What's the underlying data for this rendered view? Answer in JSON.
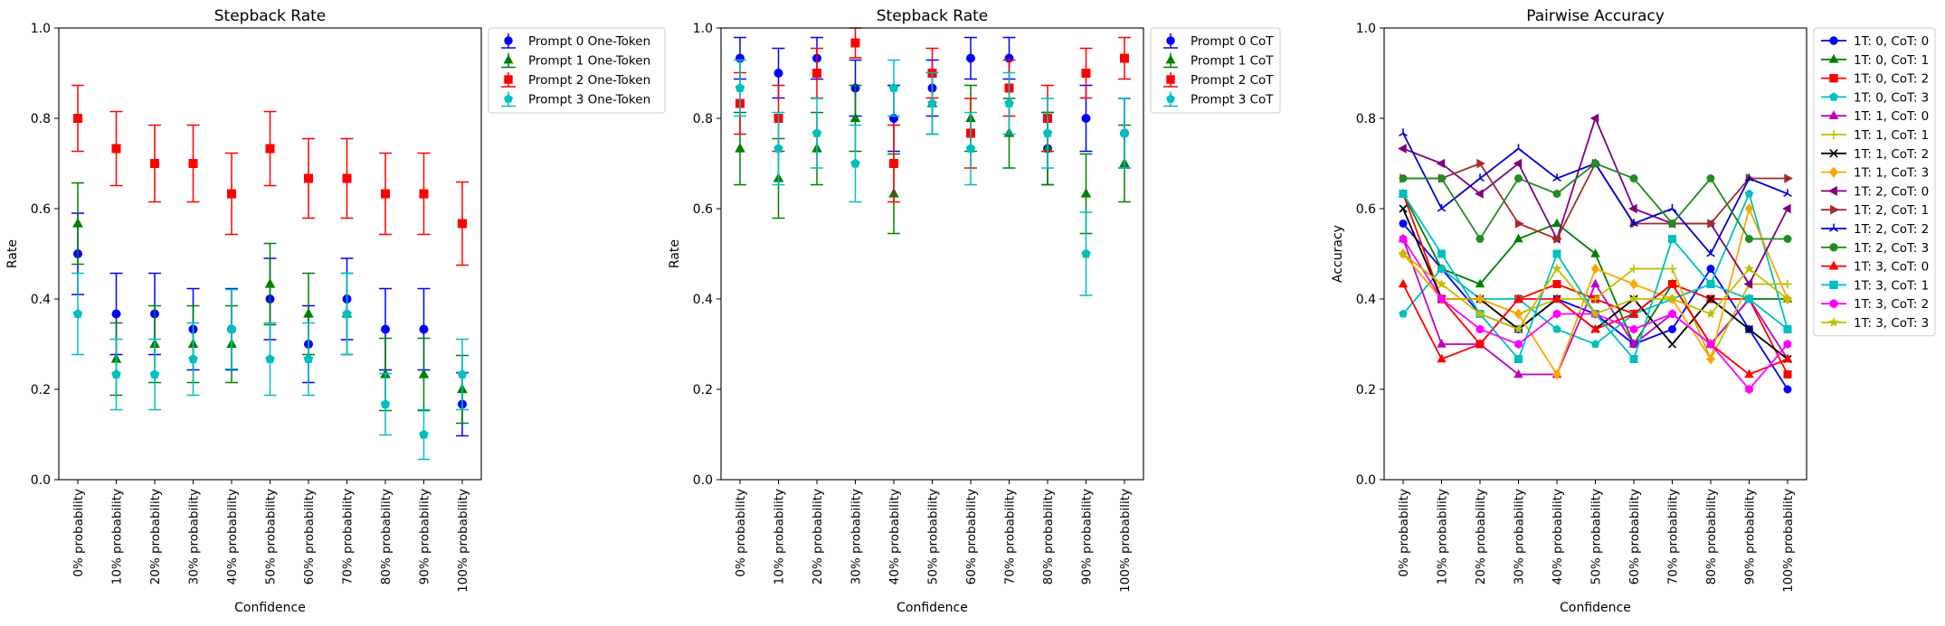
{
  "chart_data": [
    {
      "type": "errorbar",
      "title": "Stepback Rate",
      "xlabel": "Confidence",
      "ylabel": "Rate",
      "ylim": [
        0,
        1.0
      ],
      "yticks": [
        "0.0",
        "0.2",
        "0.4",
        "0.6",
        "0.8",
        "1.0"
      ],
      "categories": [
        "0% probability",
        "10% probability",
        "20% probability",
        "30% probability",
        "40% probability",
        "50% probability",
        "60% probability",
        "70% probability",
        "80% probability",
        "90% probability",
        "100% probability"
      ],
      "legend_position": "outside-right",
      "series": [
        {
          "name": "Prompt 0 One-Token",
          "color": "#0000ff",
          "marker": "circle",
          "values": [
            0.5,
            0.367,
            0.367,
            0.333,
            0.333,
            0.4,
            0.3,
            0.4,
            0.333,
            0.333,
            0.167
          ],
          "err": [
            0.09,
            0.09,
            0.09,
            0.09,
            0.09,
            0.09,
            0.085,
            0.09,
            0.09,
            0.09,
            0.07
          ]
        },
        {
          "name": "Prompt 1 One-Token",
          "color": "#008000",
          "marker": "triangle",
          "values": [
            0.567,
            0.267,
            0.3,
            0.3,
            0.3,
            0.433,
            0.367,
            0.367,
            0.233,
            0.233,
            0.2
          ],
          "err": [
            0.09,
            0.08,
            0.085,
            0.085,
            0.085,
            0.09,
            0.09,
            0.09,
            0.08,
            0.08,
            0.075
          ]
        },
        {
          "name": "Prompt 2 One-Token",
          "color": "#ff0000",
          "marker": "square",
          "values": [
            0.8,
            0.733,
            0.7,
            0.7,
            0.633,
            0.733,
            0.667,
            0.667,
            0.633,
            0.633,
            0.567
          ],
          "err": [
            0.073,
            0.082,
            0.085,
            0.085,
            0.09,
            0.082,
            0.088,
            0.088,
            0.09,
            0.09,
            0.092
          ]
        },
        {
          "name": "Prompt 3 One-Token",
          "color": "#00bfbf",
          "marker": "pentagon",
          "values": [
            0.367,
            0.233,
            0.233,
            0.267,
            0.333,
            0.267,
            0.267,
            0.367,
            0.167,
            0.1,
            0.233
          ],
          "err": [
            0.09,
            0.078,
            0.078,
            0.08,
            0.088,
            0.08,
            0.08,
            0.09,
            0.068,
            0.055,
            0.078
          ]
        }
      ]
    },
    {
      "type": "errorbar",
      "title": "Stepback Rate",
      "xlabel": "Confidence",
      "ylabel": "Rate",
      "ylim": [
        0,
        1.0
      ],
      "yticks": [
        "0.0",
        "0.2",
        "0.4",
        "0.6",
        "0.8",
        "1.0"
      ],
      "categories": [
        "0% probability",
        "10% probability",
        "20% probability",
        "30% probability",
        "40% probability",
        "50% probability",
        "60% probability",
        "70% probability",
        "80% probability",
        "90% probability",
        "100% probability"
      ],
      "legend_position": "outside-right",
      "series": [
        {
          "name": "Prompt 0 CoT",
          "color": "#0000ff",
          "marker": "circle",
          "values": [
            0.933,
            0.9,
            0.933,
            0.867,
            0.8,
            0.867,
            0.933,
            0.933,
            0.733,
            0.8,
            0.767
          ],
          "err": [
            0.046,
            0.055,
            0.046,
            0.062,
            0.073,
            0.062,
            0.046,
            0.046,
            0.08,
            0.073,
            0.077
          ]
        },
        {
          "name": "Prompt 1 CoT",
          "color": "#008000",
          "marker": "triangle",
          "values": [
            0.733,
            0.667,
            0.733,
            0.8,
            0.633,
            0.833,
            0.8,
            0.767,
            0.733,
            0.633,
            0.7
          ],
          "err": [
            0.08,
            0.088,
            0.08,
            0.073,
            0.088,
            0.068,
            0.073,
            0.077,
            0.08,
            0.088,
            0.085
          ]
        },
        {
          "name": "Prompt 2 CoT",
          "color": "#ff0000",
          "marker": "square",
          "values": [
            0.833,
            0.8,
            0.9,
            0.967,
            0.7,
            0.9,
            0.767,
            0.867,
            0.8,
            0.9,
            0.933
          ],
          "err": [
            0.068,
            0.073,
            0.055,
            0.033,
            0.085,
            0.055,
            0.077,
            0.062,
            0.073,
            0.055,
            0.046
          ]
        },
        {
          "name": "Prompt 3 CoT",
          "color": "#00bfbf",
          "marker": "pentagon",
          "values": [
            0.867,
            0.733,
            0.767,
            0.7,
            0.867,
            0.833,
            0.733,
            0.833,
            0.767,
            0.5,
            0.767
          ],
          "err": [
            0.062,
            0.08,
            0.077,
            0.085,
            0.062,
            0.068,
            0.08,
            0.068,
            0.077,
            0.092,
            0.077
          ]
        }
      ]
    },
    {
      "type": "line",
      "title": "Pairwise Accuracy",
      "xlabel": "Confidence",
      "ylabel": "Accuracy",
      "ylim": [
        0,
        1.0
      ],
      "yticks": [
        "0.0",
        "0.2",
        "0.4",
        "0.6",
        "0.8",
        "1.0"
      ],
      "categories": [
        "0% probability",
        "10% probability",
        "20% probability",
        "30% probability",
        "40% probability",
        "50% probability",
        "60% probability",
        "70% probability",
        "80% probability",
        "90% probability",
        "100% probability"
      ],
      "legend_position": "outside-right",
      "series": [
        {
          "name": "1T: 0, CoT: 0",
          "color": "#0000ff",
          "marker": "circle",
          "values": [
            0.567,
            0.467,
            0.367,
            0.333,
            0.4,
            0.367,
            0.3,
            0.333,
            0.467,
            0.333,
            0.2
          ]
        },
        {
          "name": "1T: 0, CoT: 1",
          "color": "#008000",
          "marker": "triangle",
          "values": [
            0.633,
            0.467,
            0.433,
            0.533,
            0.567,
            0.5,
            0.3,
            0.433,
            0.3,
            0.4,
            0.4
          ]
        },
        {
          "name": "1T: 0, CoT: 2",
          "color": "#ff0000",
          "marker": "square",
          "values": [
            0.633,
            0.4,
            0.3,
            0.4,
            0.433,
            0.4,
            0.367,
            0.433,
            0.4,
            0.4,
            0.233
          ]
        },
        {
          "name": "1T: 0, CoT: 3",
          "color": "#00bfbf",
          "marker": "pentagon",
          "values": [
            0.367,
            0.467,
            0.4,
            0.4,
            0.333,
            0.3,
            0.367,
            0.4,
            0.433,
            0.633,
            0.333
          ]
        },
        {
          "name": "1T: 1, CoT: 0",
          "color": "#bf00bf",
          "marker": "triangle-up",
          "values": [
            0.533,
            0.3,
            0.3,
            0.233,
            0.233,
            0.433,
            0.3,
            0.367,
            0.3,
            0.4,
            0.267
          ]
        },
        {
          "name": "1T: 1, CoT: 1",
          "color": "#bfbf00",
          "marker": "plus",
          "values": [
            0.5,
            0.4,
            0.4,
            0.367,
            0.4,
            0.4,
            0.467,
            0.467,
            0.267,
            0.433,
            0.433
          ]
        },
        {
          "name": "1T: 1, CoT: 2",
          "color": "#000000",
          "marker": "x",
          "values": [
            0.6,
            0.4,
            0.4,
            0.333,
            0.4,
            0.333,
            0.4,
            0.3,
            0.4,
            0.333,
            0.267
          ]
        },
        {
          "name": "1T: 1, CoT: 3",
          "color": "#ffa500",
          "marker": "diamond",
          "values": [
            0.5,
            0.4,
            0.4,
            0.367,
            0.233,
            0.467,
            0.433,
            0.4,
            0.267,
            0.6,
            0.4
          ]
        },
        {
          "name": "1T: 2, CoT: 0",
          "color": "#800080",
          "marker": "triangle-left",
          "values": [
            0.733,
            0.7,
            0.633,
            0.7,
            0.533,
            0.8,
            0.6,
            0.567,
            0.567,
            0.433,
            0.6
          ]
        },
        {
          "name": "1T: 2, CoT: 1",
          "color": "#a52a2a",
          "marker": "triangle-right",
          "values": [
            0.667,
            0.667,
            0.7,
            0.567,
            0.533,
            0.7,
            0.567,
            0.567,
            0.567,
            0.667,
            0.667
          ]
        },
        {
          "name": "1T: 2, CoT: 2",
          "color": "#0000cd",
          "marker": "tri",
          "values": [
            0.767,
            0.6,
            0.667,
            0.733,
            0.667,
            0.7,
            0.567,
            0.6,
            0.5,
            0.667,
            0.633
          ]
        },
        {
          "name": "1T: 2, CoT: 3",
          "color": "#228b22",
          "marker": "circle",
          "values": [
            0.667,
            0.667,
            0.533,
            0.667,
            0.633,
            0.7,
            0.667,
            0.567,
            0.667,
            0.533,
            0.533
          ]
        },
        {
          "name": "1T: 3, CoT: 0",
          "color": "#ff0000",
          "marker": "triangle",
          "values": [
            0.433,
            0.267,
            0.3,
            0.4,
            0.4,
            0.333,
            0.367,
            0.433,
            0.3,
            0.233,
            0.267
          ]
        },
        {
          "name": "1T: 3, CoT: 1",
          "color": "#00bfbf",
          "marker": "square",
          "values": [
            0.633,
            0.5,
            0.367,
            0.267,
            0.5,
            0.367,
            0.267,
            0.533,
            0.433,
            0.4,
            0.333
          ]
        },
        {
          "name": "1T: 3, CoT: 2",
          "color": "#ff00ff",
          "marker": "hexagon",
          "values": [
            0.533,
            0.4,
            0.333,
            0.3,
            0.367,
            0.367,
            0.333,
            0.367,
            0.3,
            0.2,
            0.3
          ]
        },
        {
          "name": "1T: 3, CoT: 3",
          "color": "#bfbf00",
          "marker": "star",
          "values": [
            0.5,
            0.433,
            0.367,
            0.333,
            0.467,
            0.367,
            0.4,
            0.4,
            0.367,
            0.467,
            0.4
          ]
        }
      ]
    }
  ]
}
